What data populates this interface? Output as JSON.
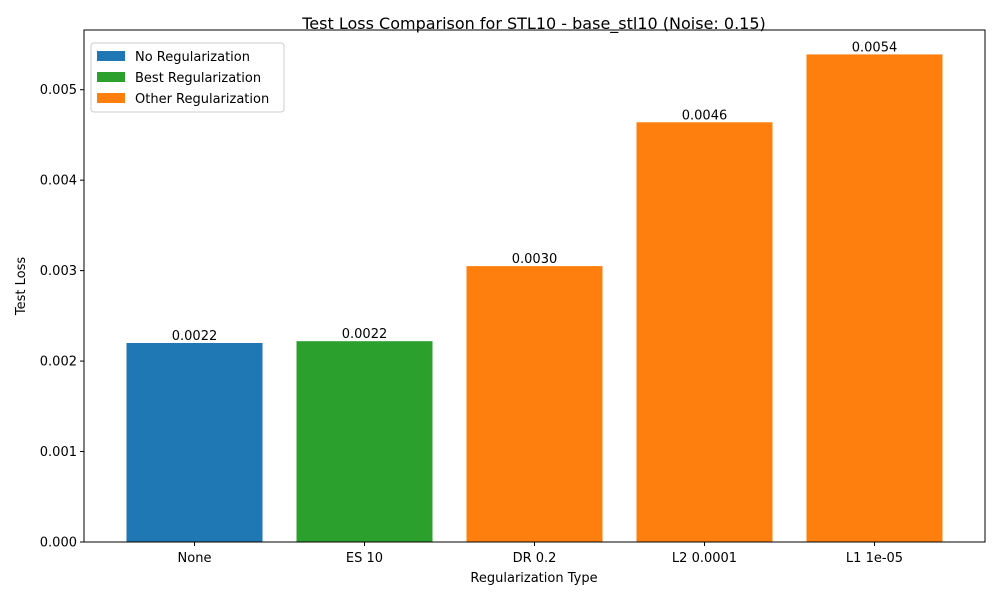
{
  "chart_data": {
    "type": "bar",
    "title": "Test Loss Comparison for STL10 - base_stl10 (Noise: 0.15)",
    "xlabel": "Regularization Type",
    "ylabel": "Test Loss",
    "categories": [
      "None",
      "ES 10",
      "DR 0.2",
      "L2 0.0001",
      "L1 1e-05"
    ],
    "values": [
      0.0022,
      0.00222,
      0.00305,
      0.00464,
      0.00539
    ],
    "data_labels": [
      "0.0022",
      "0.0022",
      "0.0030",
      "0.0046",
      "0.0054"
    ],
    "bar_groups": [
      "No Regularization",
      "Best Regularization",
      "Other Regularization",
      "Other Regularization",
      "Other Regularization"
    ],
    "ylim": [
      0,
      0.00566
    ],
    "yticks": [
      0,
      0.001,
      0.002,
      0.003,
      0.004,
      0.005
    ],
    "ytick_labels": [
      "0.000",
      "0.001",
      "0.002",
      "0.003",
      "0.004",
      "0.005"
    ],
    "grid": false,
    "legend_position": "top-left",
    "legend": [
      {
        "label": "No Regularization",
        "color": "#1f77b4"
      },
      {
        "label": "Best Regularization",
        "color": "#2ca02c"
      },
      {
        "label": "Other Regularization",
        "color": "#ff7f0e"
      }
    ]
  }
}
